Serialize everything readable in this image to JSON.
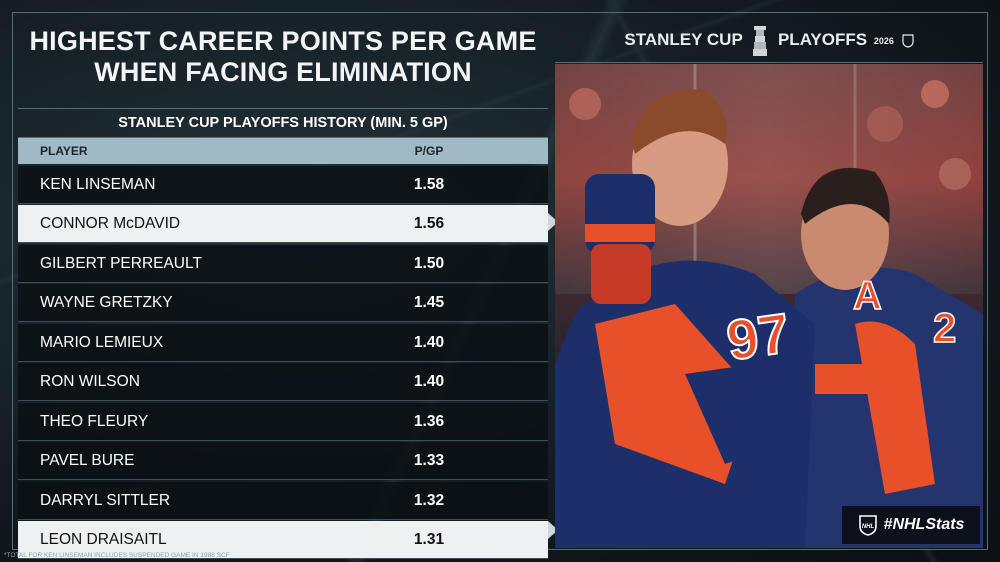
{
  "title_lines": [
    "HIGHEST CAREER POINTS PER GAME",
    "WHEN FACING ELIMINATION"
  ],
  "subtitle": "STANLEY CUP PLAYOFFS HISTORY (MIN. 5 GP)",
  "columns": {
    "player": "PLAYER",
    "pgp": "P/GP"
  },
  "rows": [
    {
      "player": "KEN LINSEMAN",
      "pgp": "1.58",
      "highlight": false
    },
    {
      "player": "CONNOR McDAVID",
      "pgp": "1.56",
      "highlight": true
    },
    {
      "player": "GILBERT PERREAULT",
      "pgp": "1.50",
      "highlight": false
    },
    {
      "player": "WAYNE GRETZKY",
      "pgp": "1.45",
      "highlight": false
    },
    {
      "player": "MARIO LEMIEUX",
      "pgp": "1.40",
      "highlight": false
    },
    {
      "player": "RON WILSON",
      "pgp": "1.40",
      "highlight": false
    },
    {
      "player": "THEO FLEURY",
      "pgp": "1.36",
      "highlight": false
    },
    {
      "player": "PAVEL BURE",
      "pgp": "1.33",
      "highlight": false
    },
    {
      "player": "DARRYL SITTLER",
      "pgp": "1.32",
      "highlight": false
    },
    {
      "player": "LEON DRAISAITL",
      "pgp": "1.31",
      "highlight": true
    }
  ],
  "logo": {
    "left": "STANLEY CUP",
    "right": "PLAYOFFS",
    "year": "2026"
  },
  "hashtag": "#NHLStats",
  "footnote": "*TOTAL FOR KEN LINSEMAN INCLUDES SUSPENDED GAME IN 1988 SCF",
  "jerseys": [
    "97",
    "A",
    "2"
  ],
  "colors": {
    "oilers_blue": "#1d2f6b",
    "oilers_orange": "#e8502a",
    "header_teal": "#9fbac4",
    "highlight_row": "#eef1f2"
  }
}
